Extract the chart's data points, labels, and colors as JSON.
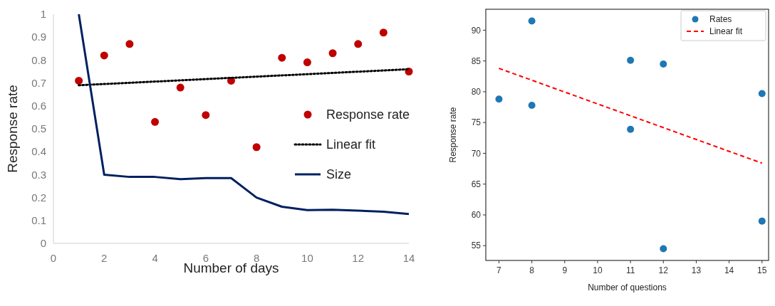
{
  "chart_data": [
    {
      "type": "scatter",
      "xlabel": "Number of days",
      "ylabel": "Response rate",
      "xlim": [
        0,
        14
      ],
      "ylim": [
        0,
        1
      ],
      "xticks": [
        0,
        2,
        4,
        6,
        8,
        10,
        12,
        14
      ],
      "yticks": [
        0,
        0.1,
        0.2,
        0.3,
        0.4,
        0.5,
        0.6,
        0.7,
        0.8,
        0.9,
        1
      ],
      "grid": false,
      "legend": "right",
      "series": [
        {
          "name": "Response rate",
          "marker": "circle",
          "color": "#c00000",
          "x": [
            1,
            2,
            3,
            4,
            5,
            6,
            7,
            8,
            9,
            10,
            11,
            12,
            13,
            14
          ],
          "values": [
            0.71,
            0.82,
            0.87,
            0.53,
            0.68,
            0.56,
            0.71,
            0.42,
            0.81,
            0.79,
            0.83,
            0.87,
            0.92,
            0.75
          ]
        },
        {
          "name": "Linear fit",
          "type": "line",
          "line_style": "dotted",
          "color": "#000000",
          "x": [
            1,
            14
          ],
          "values": [
            0.69,
            0.76
          ]
        },
        {
          "name": "Size",
          "type": "line",
          "line_style": "solid",
          "color": "#002060",
          "x": [
            1,
            2,
            3,
            4,
            5,
            6,
            7,
            8,
            9,
            10,
            11,
            12,
            13,
            14
          ],
          "values": [
            1.0,
            0.3,
            0.29,
            0.29,
            0.28,
            0.285,
            0.285,
            0.2,
            0.16,
            0.145,
            0.147,
            0.143,
            0.138,
            0.128
          ]
        }
      ]
    },
    {
      "type": "scatter",
      "xlabel": "Number of questions",
      "ylabel": "Response rate",
      "xlim": [
        6.6,
        15.2
      ],
      "ylim": [
        52.6,
        93.4
      ],
      "xticks": [
        7,
        8,
        9,
        10,
        11,
        12,
        13,
        14,
        15
      ],
      "yticks": [
        55,
        60,
        65,
        70,
        75,
        80,
        85,
        90
      ],
      "grid": false,
      "legend": "top right",
      "series": [
        {
          "name": "Rates",
          "marker": "circle",
          "color": "#1f77b4",
          "x": [
            7,
            8,
            8,
            11,
            11,
            12,
            12,
            15,
            15
          ],
          "values": [
            78.8,
            91.5,
            77.8,
            85.1,
            73.9,
            84.5,
            54.5,
            79.7,
            59.0
          ]
        },
        {
          "name": "Linear fit",
          "type": "line",
          "line_style": "dashed",
          "color": "#ff0000",
          "x": [
            7,
            15
          ],
          "values": [
            83.8,
            68.4
          ]
        }
      ]
    }
  ]
}
